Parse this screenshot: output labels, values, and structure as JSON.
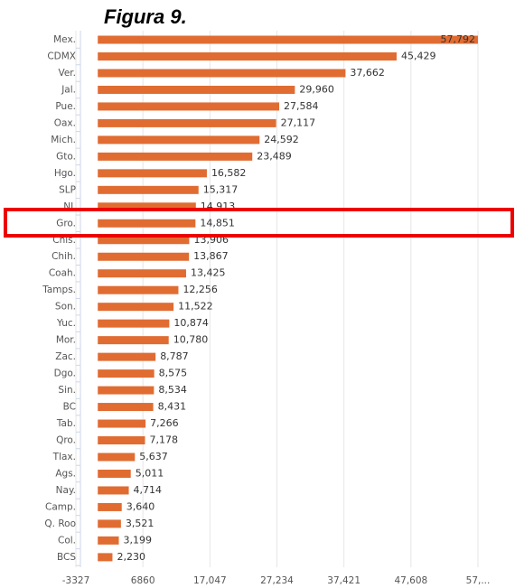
{
  "chart_data": {
    "type": "bar",
    "orientation": "horizontal",
    "annotation": "Figura 9.",
    "categories": [
      "Mex.",
      "CDMX",
      "Ver.",
      "Jal.",
      "Pue.",
      "Oax.",
      "Mich.",
      "Gto.",
      "Hgo.",
      "SLP",
      "NL",
      "Gro.",
      "Chis.",
      "Chih.",
      "Coah.",
      "Tamps.",
      "Son.",
      "Yuc.",
      "Mor.",
      "Zac.",
      "Dgo.",
      "Sin.",
      "BC",
      "Tab.",
      "Qro.",
      "Tlax.",
      "Ags.",
      "Nay.",
      "Camp.",
      "Q. Roo",
      "Col.",
      "BCS"
    ],
    "values": [
      57792,
      45429,
      37662,
      29960,
      27584,
      27117,
      24592,
      23489,
      16582,
      15317,
      14913,
      14851,
      13906,
      13867,
      13425,
      12256,
      11522,
      10874,
      10780,
      8787,
      8575,
      8534,
      8431,
      7266,
      7178,
      5637,
      5011,
      4714,
      3640,
      3521,
      3199,
      2230
    ],
    "value_labels": [
      "57,792",
      "45,429",
      "37,662",
      "29,960",
      "27,584",
      "27,117",
      "24,592",
      "23,489",
      "16,582",
      "15,317",
      "14,913",
      "14,851",
      "13,906",
      "13,867",
      "13,425",
      "12,256",
      "11,522",
      "10,874",
      "10,780",
      "8,787",
      "8,575",
      "8,534",
      "8,431",
      "7,266",
      "7,178",
      "5,637",
      "5,011",
      "4,714",
      "3,640",
      "3,521",
      "3,199",
      "2,230"
    ],
    "color": "#e06c32",
    "xlim": [
      -3327,
      57795
    ],
    "xticks": [
      -3327,
      6860,
      {
        "value": 17047,
        "label": "17,047"
      },
      {
        "value": 27234,
        "label": "27,234"
      },
      {
        "value": 37421,
        "label": "37,421"
      },
      {
        "value": 47608,
        "label": "47,608"
      },
      {
        "value": 57795,
        "label": "57,..."
      }
    ],
    "grid": true
  }
}
